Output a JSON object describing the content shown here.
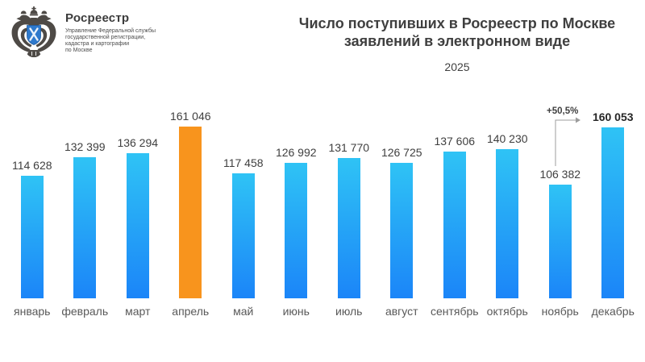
{
  "header": {
    "logo_title": "Росреестр",
    "logo_subtitle": "Управление Федеральной службы\nгосударственной регистрации,\nкадастра и картографии\nпо Москве",
    "title_line1": "Число поступивших в Росреестр по Москве",
    "title_line2": "заявлений в электронном виде",
    "year": "2025"
  },
  "chart_data": {
    "type": "bar",
    "title": "Число поступивших в Росреестр по Москве заявлений в электронном виде",
    "subtitle": "2025",
    "categories": [
      "январь",
      "февраль",
      "март",
      "апрель",
      "май",
      "июнь",
      "июль",
      "август",
      "сентябрь",
      "октябрь",
      "ноябрь",
      "декабрь"
    ],
    "values": [
      114628,
      132399,
      136294,
      161046,
      117458,
      126992,
      131770,
      126725,
      137606,
      140230,
      106382,
      160053
    ],
    "value_labels": [
      "114 628",
      "132 399",
      "136 294",
      "161 046",
      "117 458",
      "126 992",
      "131 770",
      "126 725",
      "137 606",
      "140 230",
      "106 382",
      "160 053"
    ],
    "highlight_index": 3,
    "bold_value_index": 11,
    "annotation": {
      "text": "+50,5%",
      "from_category": "ноябрь",
      "to_category": "декабрь"
    },
    "xlabel": "",
    "ylabel": "",
    "ylim": [
      0,
      165000
    ],
    "grid": false,
    "legend": false,
    "colors": {
      "bar_gradient_top": "#2fc3f5",
      "bar_gradient_bottom": "#1b85f8",
      "highlight_bar": "#f8941d",
      "value_label": "#3f3f3f",
      "month_label": "#595959",
      "annotation_line": "#9c9c9c",
      "emblem_shield": "#2e79cc"
    }
  }
}
